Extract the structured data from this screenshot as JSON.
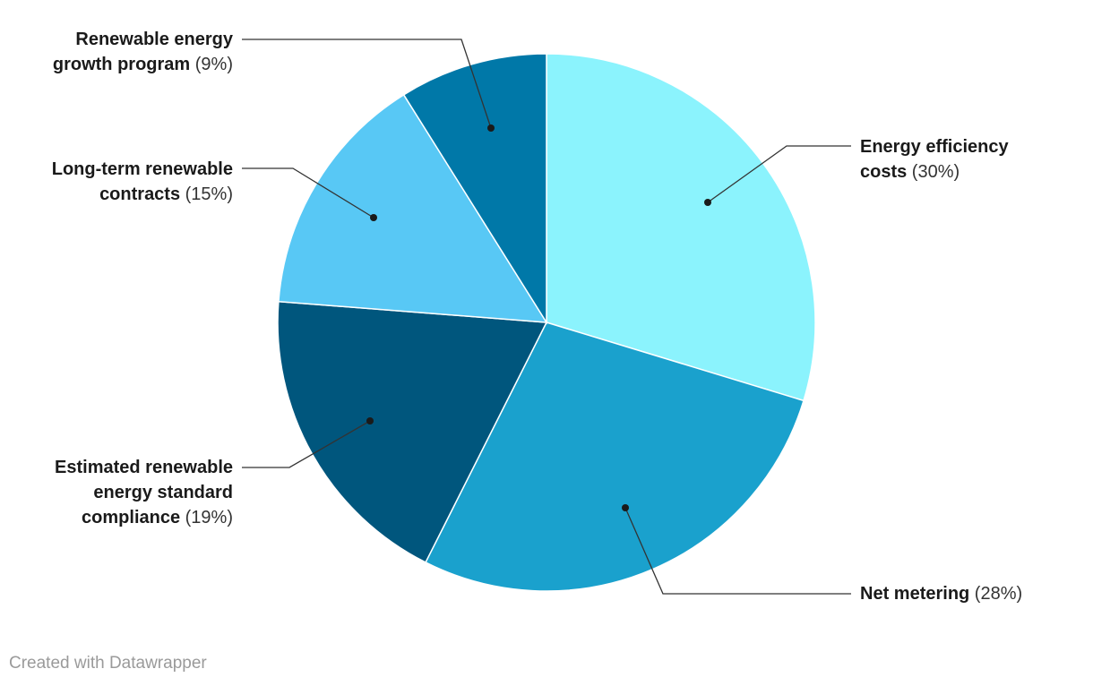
{
  "chart_data": {
    "type": "pie",
    "title": "",
    "labels": [
      "Energy efficiency costs",
      "Net metering",
      "Estimated renewable energy standard compliance",
      "Long-term renewable contracts",
      "Renewable energy growth program"
    ],
    "display_lines": [
      [
        "Energy efficiency",
        "costs"
      ],
      [
        "Net metering"
      ],
      [
        "Estimated renewable",
        "energy standard",
        "compliance"
      ],
      [
        "Long-term renewable",
        "contracts"
      ],
      [
        "Renewable energy",
        "growth program"
      ]
    ],
    "values": [
      30,
      28,
      19,
      15,
      9
    ],
    "value_labels": [
      "(30%)",
      "(28%)",
      "(19%)",
      "(15%)",
      "(9%)"
    ],
    "unit": "%",
    "colors": [
      "#8bf3fd",
      "#1aa1cd",
      "#00567d",
      "#58c8f5",
      "#0078a8"
    ]
  },
  "credit": "Created with Datawrapper"
}
